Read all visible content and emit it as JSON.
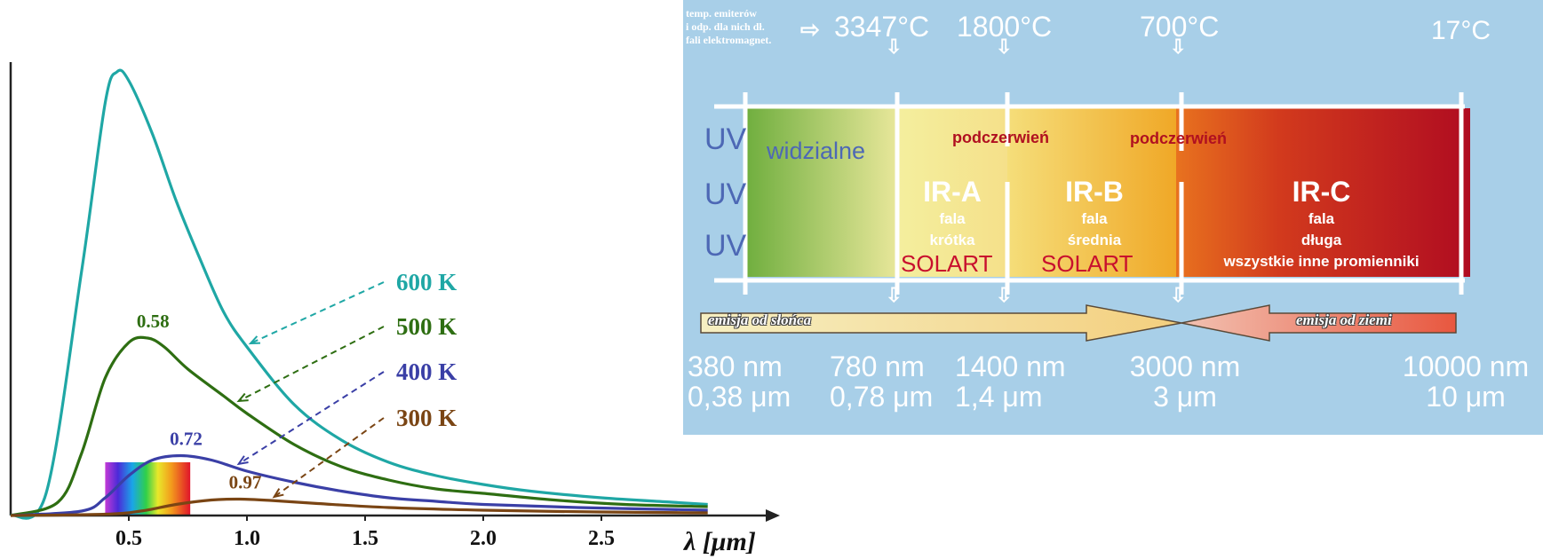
{
  "chart_data": {
    "type": "line",
    "title": "",
    "xlabel": "λ [μm]",
    "ylabel": "",
    "xlim": [
      0.0,
      2.95
    ],
    "ylim": [
      0,
      1.0
    ],
    "x_ticks": [
      "0.5",
      "1.0",
      "1.5",
      "2.0",
      "2.5"
    ],
    "legend_position": "right, with dashed arrows pointing to curves",
    "series": [
      {
        "name": "600 K",
        "color": "#1fa7a5",
        "x": [
          0.0,
          0.15,
          0.3,
          0.4,
          0.45,
          0.5,
          0.6,
          0.7,
          0.8,
          0.9,
          1.0,
          1.2,
          1.4,
          1.6,
          1.8,
          2.0,
          2.2,
          2.5,
          2.8,
          2.95
        ],
        "y": [
          0.0,
          0.05,
          0.55,
          0.93,
          1.0,
          0.98,
          0.86,
          0.71,
          0.58,
          0.46,
          0.38,
          0.25,
          0.17,
          0.12,
          0.09,
          0.07,
          0.055,
          0.04,
          0.03,
          0.025
        ]
      },
      {
        "name": "500 K",
        "color": "#2e6e12",
        "x": [
          0.0,
          0.2,
          0.3,
          0.4,
          0.5,
          0.58,
          0.65,
          0.75,
          0.9,
          1.0,
          1.2,
          1.4,
          1.6,
          1.8,
          2.0,
          2.3,
          2.6,
          2.95
        ],
        "y": [
          0.0,
          0.03,
          0.14,
          0.31,
          0.39,
          0.4,
          0.38,
          0.33,
          0.27,
          0.23,
          0.16,
          0.11,
          0.08,
          0.06,
          0.05,
          0.035,
          0.025,
          0.02
        ]
      },
      {
        "name": "400 K",
        "color": "#3a3fa6",
        "x": [
          0.0,
          0.3,
          0.4,
          0.5,
          0.6,
          0.72,
          0.85,
          1.0,
          1.2,
          1.4,
          1.6,
          1.8,
          2.0,
          2.4,
          2.95
        ],
        "y": [
          0.0,
          0.01,
          0.04,
          0.09,
          0.125,
          0.135,
          0.125,
          0.1,
          0.075,
          0.055,
          0.04,
          0.032,
          0.025,
          0.018,
          0.012
        ]
      },
      {
        "name": "300 K",
        "color": "#7a4514",
        "x": [
          0.0,
          0.4,
          0.55,
          0.7,
          0.85,
          0.97,
          1.1,
          1.3,
          1.6,
          2.0,
          2.5,
          2.95
        ],
        "y": [
          0.0,
          0.003,
          0.01,
          0.025,
          0.035,
          0.037,
          0.034,
          0.027,
          0.018,
          0.012,
          0.008,
          0.006
        ]
      }
    ],
    "annotations": [
      {
        "text": "0.58",
        "series": "500 K",
        "color": "#2e6e12"
      },
      {
        "text": "0.72",
        "series": "400 K",
        "color": "#3a3fa6"
      },
      {
        "text": "0.97",
        "series": "300 K",
        "color": "#7a4514"
      }
    ],
    "visible_spectrum_band": [
      0.4,
      0.76
    ]
  },
  "spectrum_panel": {
    "note": [
      "temp. emiterów",
      "i odp. dla nich dł.",
      "fali elektromagnet."
    ],
    "note_arrow_glyph": "⇨",
    "temperatures": [
      "3347°C",
      "1800°C",
      "700°C",
      "17°C"
    ],
    "uv": [
      "UV",
      "UV",
      "UV"
    ],
    "visible_label": "widzialne",
    "ir_labels": [
      "podczerwień",
      "podczerwień"
    ],
    "bands": [
      {
        "name": "IR-A",
        "desc": [
          "fala",
          "krótka"
        ],
        "solart": "SOLART"
      },
      {
        "name": "IR-B",
        "desc": [
          "fala",
          "średnia"
        ],
        "solart": "SOLART"
      },
      {
        "name": "IR-C",
        "desc": [
          "fala",
          "długa",
          "wszystkie inne promienniki"
        ]
      }
    ],
    "emission_sun": "emisja od słońca",
    "emission_earth": "emisja od ziemi",
    "wavelengths": [
      {
        "nm": "380 nm",
        "um": "0,38 μm"
      },
      {
        "nm": "780 nm",
        "um": "0,78 μm"
      },
      {
        "nm": "1400 nm",
        "um": "1,4 μm"
      },
      {
        "nm": "3000 nm",
        "um": "3 μm"
      },
      {
        "nm": "10000 nm",
        "um": "10 μm"
      }
    ],
    "down_arrow_glyph": "⇩",
    "colors": {
      "background": "#a8cfe8",
      "visible_start": "#6fae3e",
      "ir_a": "#f4e7a3",
      "ir_b": "#f3c84a",
      "ir_c": "#b00c21",
      "uv_text": "#4d68b5",
      "solart": "#c8102e"
    }
  }
}
